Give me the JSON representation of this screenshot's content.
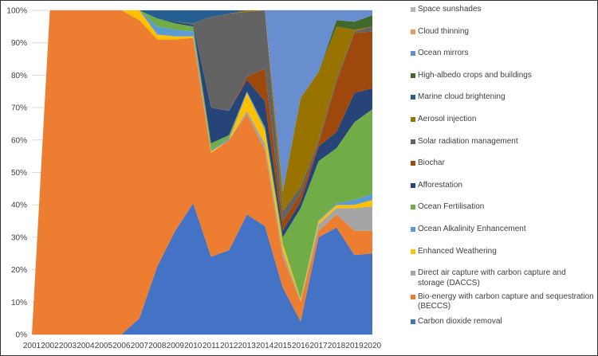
{
  "chart_data": {
    "type": "area",
    "stacking": "percent",
    "categories": [
      "2001",
      "2002",
      "2003",
      "2004",
      "2005",
      "2006",
      "2007",
      "2008",
      "2009",
      "2010",
      "2011",
      "2012",
      "2013",
      "2014",
      "2015",
      "2016",
      "2017",
      "2018",
      "2019",
      "2020"
    ],
    "ylim": [
      0,
      100
    ],
    "yticks": [
      "0%",
      "10%",
      "20%",
      "30%",
      "40%",
      "50%",
      "60%",
      "70%",
      "80%",
      "90%",
      "100%"
    ],
    "grid": true,
    "legend_position": "right",
    "title": "",
    "xlabel": "",
    "ylabel": "",
    "series": [
      {
        "name": "Carbon dioxide removal",
        "color": "#4472C4",
        "values": [
          0,
          0,
          0,
          0,
          0,
          0,
          5,
          21,
          32,
          40.5,
          24,
          26,
          37,
          33.5,
          14.5,
          4,
          30,
          33,
          24.5,
          25
        ]
      },
      {
        "name": "Bio-energy with carbon capture and sequestration (BECCS)",
        "color": "#ED7D31",
        "values": [
          0,
          100,
          100,
          100,
          100,
          100,
          92,
          70,
          59,
          51,
          32,
          34,
          31,
          23.5,
          9.5,
          6,
          2,
          4,
          7.5,
          7
        ]
      },
      {
        "name": "Direct air capture with carbon capture and storage (DACCS)",
        "color": "#A5A5A5",
        "values": [
          0,
          0,
          0,
          0,
          0,
          0,
          0,
          0,
          0,
          0,
          0,
          0,
          1,
          2,
          2,
          0.5,
          2,
          2,
          7,
          7.5
        ]
      },
      {
        "name": "Enhanced Weathering",
        "color": "#FFC000",
        "values": [
          0,
          0,
          0,
          0,
          0,
          0,
          3,
          1.5,
          1,
          0.5,
          0.5,
          0,
          5.5,
          4,
          2,
          0.5,
          1,
          1,
          1,
          2
        ]
      },
      {
        "name": "Ocean Alkalinity Enhancement",
        "color": "#5B9BD5",
        "values": [
          0,
          0,
          0,
          0,
          0,
          0,
          0,
          2.5,
          2,
          1.5,
          0.5,
          0.5,
          0.5,
          0.5,
          0,
          0,
          0.3,
          0.5,
          1.5,
          2
        ]
      },
      {
        "name": "Ocean Fertilisation",
        "color": "#70AD47",
        "values": [
          0,
          0,
          0,
          0,
          0,
          0,
          0,
          2.5,
          2,
          1.5,
          2,
          1,
          0,
          0.5,
          2,
          28,
          18.2,
          17,
          24,
          26
        ]
      },
      {
        "name": "Afforestation",
        "color": "#264478",
        "values": [
          0,
          0,
          0,
          0,
          0,
          0,
          0,
          0,
          0.5,
          0.5,
          11,
          7.5,
          3.5,
          8,
          2,
          2,
          4.5,
          5,
          9,
          6.5
        ]
      },
      {
        "name": "Biochar",
        "color": "#9E480E",
        "values": [
          0,
          0,
          0,
          0,
          0,
          0,
          0,
          0,
          0,
          0,
          0,
          0,
          1,
          10,
          3,
          2.5,
          1,
          15.5,
          18.5,
          17.5
        ]
      },
      {
        "name": "Solar radiation management",
        "color": "#636363",
        "values": [
          0,
          0,
          0,
          0,
          0,
          0,
          0,
          0,
          0,
          0.5,
          28,
          30,
          20,
          18,
          3,
          2,
          1,
          1,
          0.5,
          1.5
        ]
      },
      {
        "name": "Aerosol injection",
        "color": "#997300",
        "values": [
          0,
          0,
          0,
          0,
          0,
          0,
          0,
          0,
          0,
          0,
          0,
          0,
          0.5,
          0,
          6,
          27.5,
          21,
          16,
          0.5,
          0
        ]
      },
      {
        "name": "Marine cloud brightening",
        "color": "#255E91",
        "values": [
          0,
          0,
          0,
          0,
          0,
          0,
          0,
          2.5,
          3.5,
          4,
          2,
          1,
          0,
          0,
          0,
          0,
          0,
          0,
          0,
          0
        ]
      },
      {
        "name": "High-albedo crops and buildings",
        "color": "#43682B",
        "values": [
          0,
          0,
          0,
          0,
          0,
          0,
          0,
          0,
          0,
          0,
          0,
          0,
          0,
          0,
          0,
          0,
          0,
          2,
          2.5,
          3.5
        ]
      },
      {
        "name": "Ocean mirrors",
        "color": "#698ED0",
        "values": [
          0,
          0,
          0,
          0,
          0,
          0,
          0,
          0,
          0,
          0,
          0,
          0,
          0,
          0,
          56,
          27,
          19,
          3,
          3.5,
          1.5
        ]
      },
      {
        "name": "Cloud thinning",
        "color": "#F1975A",
        "values": [
          0,
          0,
          0,
          0,
          0,
          0,
          0,
          0,
          0,
          0,
          0,
          0,
          0,
          0,
          0,
          0,
          0,
          0,
          0,
          0
        ]
      },
      {
        "name": "Space sunshades",
        "color": "#B7B7B7",
        "values": [
          0,
          0,
          0,
          0,
          0,
          0,
          0,
          0,
          0,
          0,
          0,
          0,
          0,
          0,
          0,
          0,
          0,
          0,
          0,
          0
        ]
      }
    ]
  }
}
